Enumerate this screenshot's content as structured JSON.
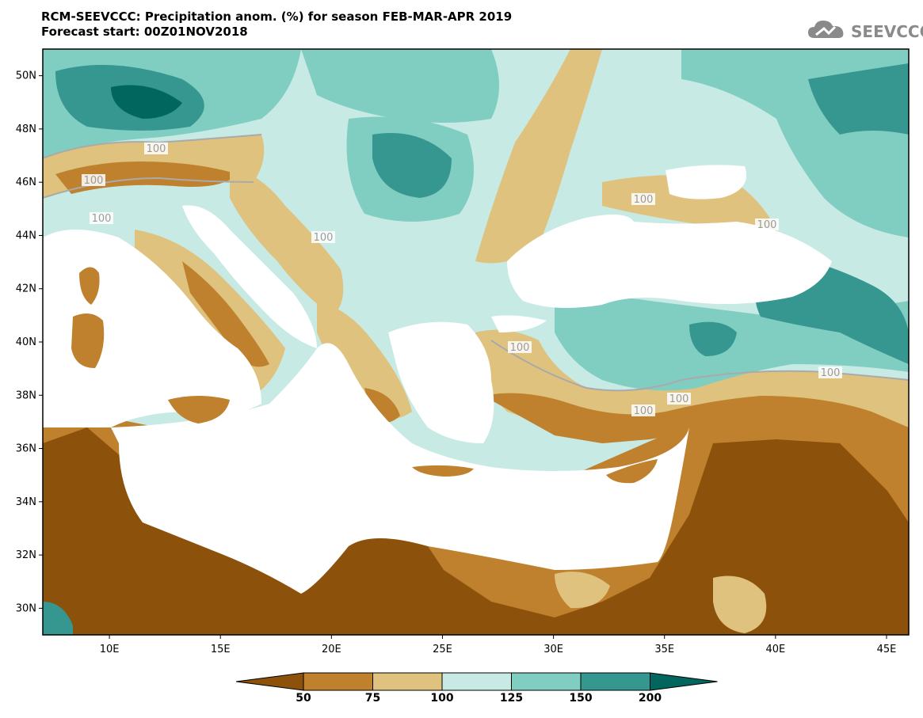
{
  "header": {
    "title_line1": "RCM-SEEVCCC: Precipitation anom. (%) for season FEB-MAR-APR 2019",
    "title_line2": "Forecast start: 00Z01NOV2018",
    "logo_text": "SEEVCCC"
  },
  "map": {
    "projection": "lat-lon",
    "lon_range": [
      7,
      46
    ],
    "lat_range": [
      29,
      51
    ],
    "lat_ticks": [
      "30N",
      "32N",
      "34N",
      "36N",
      "38N",
      "40N",
      "42N",
      "44N",
      "46N",
      "48N",
      "50N"
    ],
    "lon_ticks": [
      "10E",
      "15E",
      "20E",
      "25E",
      "30E",
      "35E",
      "40E",
      "45E"
    ],
    "contour_labels": [
      "100",
      "100",
      "100",
      "100",
      "100",
      "100",
      "100",
      "100",
      "100",
      "100"
    ],
    "sea_color": "#ffffff"
  },
  "colorbar": {
    "levels": [
      "50",
      "75",
      "100",
      "125",
      "150",
      "200"
    ],
    "colors": [
      "#8c510a",
      "#bf812d",
      "#dfc27d",
      "#c7eae5",
      "#80cdc1",
      "#35978f",
      "#01665e"
    ],
    "extend": "both"
  }
}
